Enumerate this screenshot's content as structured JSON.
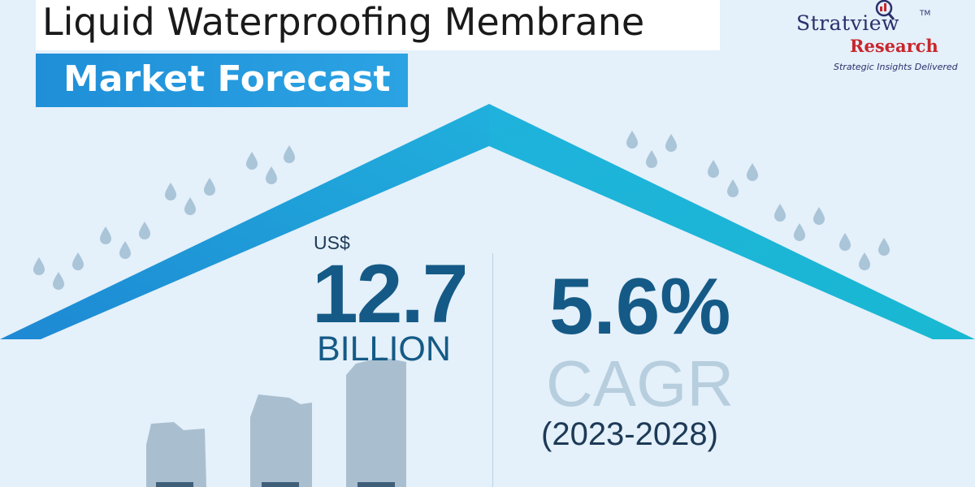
{
  "header": {
    "title": "Liquid Waterproofing Membrane",
    "subtitle": "Market Forecast"
  },
  "logo": {
    "name": "Stratview",
    "tm": "TM",
    "research": "Research",
    "tagline": "Strategic Insights Delivered"
  },
  "market_size": {
    "currency": "US$",
    "value": "12.7",
    "unit": "BILLION"
  },
  "growth": {
    "rate": "5.6%",
    "label": "CAGR",
    "period": "(2023-2028)"
  },
  "colors": {
    "background": "#e4f0fa",
    "accent_blue": "#1f8fd8",
    "roof": "#1aa6d9",
    "value_text": "#155a86",
    "logo_red": "#c8262b",
    "logo_navy": "#2b2f6b"
  }
}
